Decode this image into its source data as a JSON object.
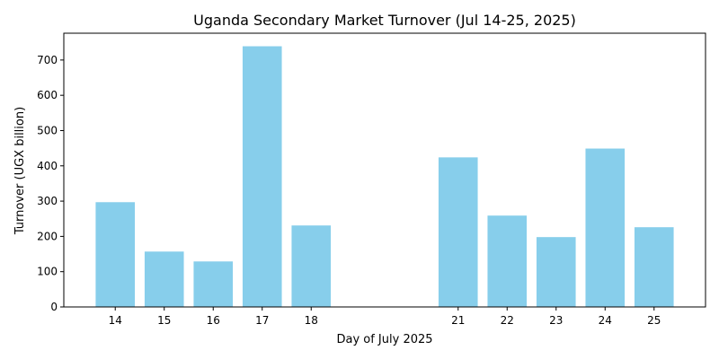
{
  "chart_data": {
    "type": "bar",
    "title": "Uganda Secondary Market Turnover (Jul 14-25, 2025)",
    "xlabel": "Day of July 2025",
    "ylabel": "Turnover (UGX billion)",
    "x": [
      14,
      15,
      16,
      17,
      18,
      21,
      22,
      23,
      24,
      25
    ],
    "values": [
      297,
      157,
      129,
      739,
      231,
      424,
      259,
      198,
      449,
      226
    ],
    "xlim": [
      12.95,
      26.05
    ],
    "ylim": [
      0,
      776
    ],
    "yticks": [
      0,
      100,
      200,
      300,
      400,
      500,
      600,
      700
    ],
    "bar_color": "#87CEEB",
    "grid": false,
    "legend": "none"
  }
}
